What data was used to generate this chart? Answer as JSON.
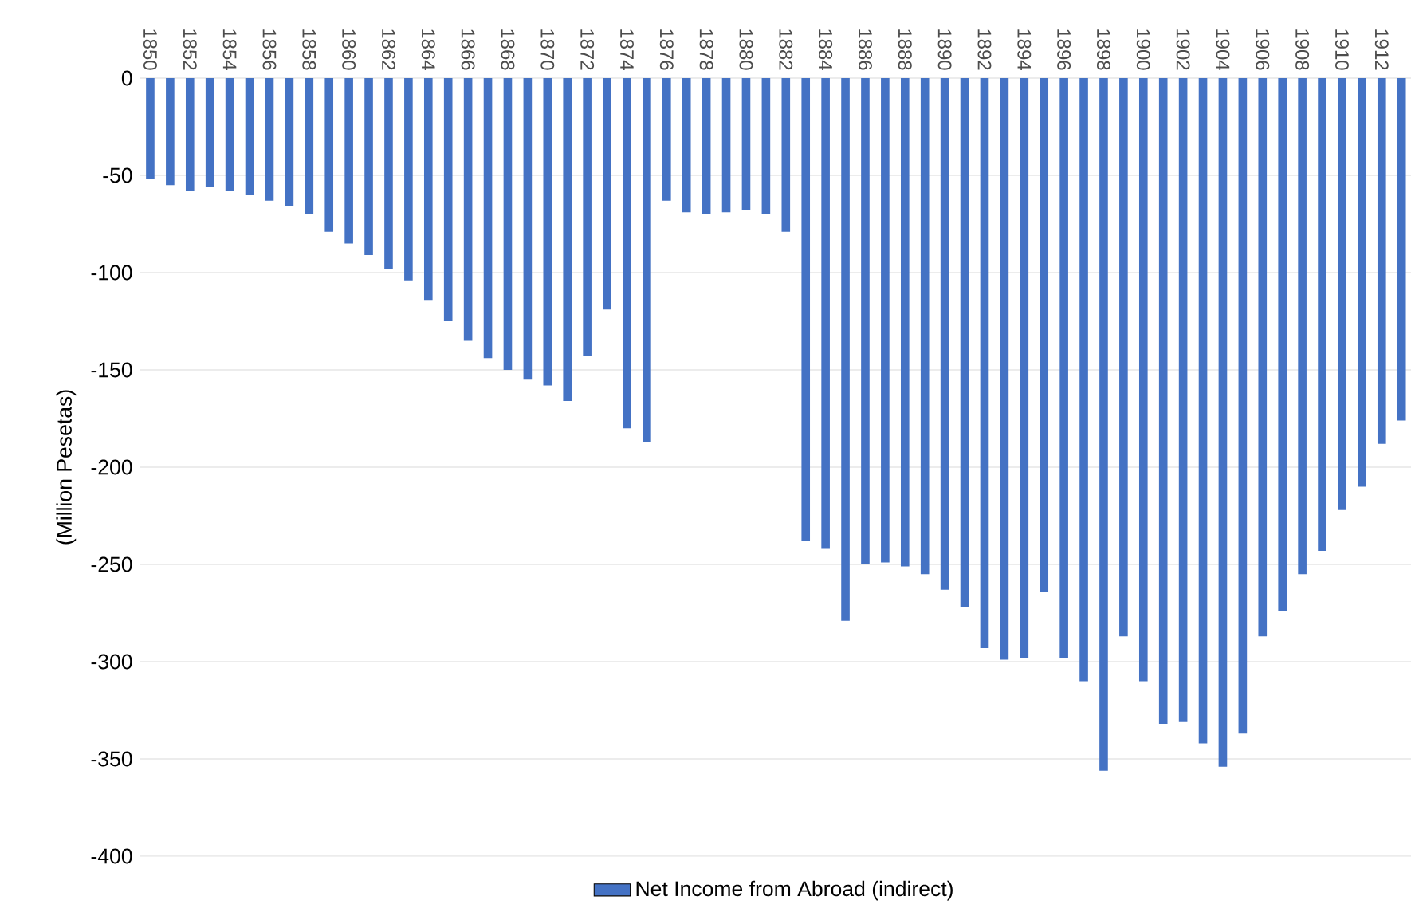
{
  "chart_data": {
    "type": "bar",
    "ylabel": "(Million Pesetas)",
    "categories": [
      "1850",
      null,
      "1852",
      null,
      "1854",
      null,
      "1856",
      null,
      "1858",
      null,
      "1860",
      null,
      "1862",
      null,
      "1864",
      null,
      "1866",
      null,
      "1868",
      null,
      "1870",
      null,
      "1872",
      null,
      "1874",
      null,
      "1876",
      null,
      "1878",
      null,
      "1880",
      null,
      "1882",
      null,
      "1884",
      null,
      "1886",
      null,
      "1888",
      null,
      "1890",
      null,
      "1892",
      null,
      "1894",
      null,
      "1896",
      null,
      "1898",
      null,
      "1900",
      null,
      "1902",
      null,
      "1904",
      null,
      "1906",
      null,
      "1908",
      null,
      "1910",
      null,
      "1912",
      null
    ],
    "series": [
      {
        "name": "Net Income from Abroad (indirect)",
        "color": "#4472c4",
        "values": [
          -52,
          -55,
          -58,
          -56,
          -58,
          -60,
          -63,
          -66,
          -70,
          -79,
          -85,
          -91,
          -98,
          -104,
          -114,
          -125,
          -135,
          -144,
          -150,
          -155,
          -158,
          -166,
          -143,
          -119,
          -180,
          -187,
          -63,
          -69,
          -70,
          -69,
          -68,
          -70,
          -79,
          -238,
          -242,
          -279,
          -250,
          -249,
          -251,
          -255,
          -263,
          -272,
          -293,
          -299,
          -298,
          -264,
          -298,
          -310,
          -356,
          -287,
          -310,
          -332,
          -331,
          -342,
          -354,
          -337,
          -287,
          -274,
          -255,
          -243,
          -222,
          -210,
          -188,
          -176
        ]
      }
    ],
    "ylim": [
      -400,
      0
    ],
    "yticks": [
      -400,
      -350,
      -300,
      -250,
      -200,
      -150,
      -100,
      -50,
      0
    ],
    "grid": "y",
    "legend": "bottom"
  }
}
